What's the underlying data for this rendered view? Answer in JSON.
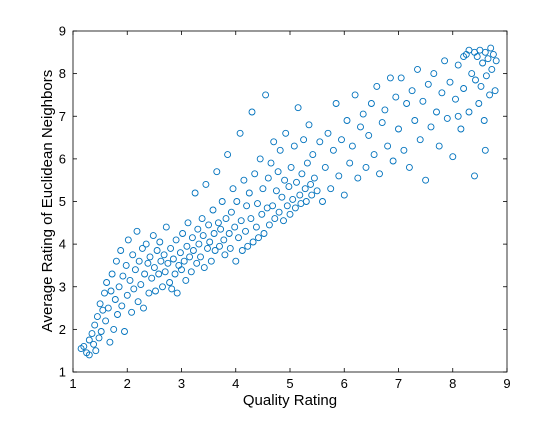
{
  "chart_data": {
    "type": "scatter",
    "xlabel": "Quality Rating",
    "ylabel": "Average Rating of Euclidean Neighbors",
    "xlim": [
      1,
      9
    ],
    "ylim": [
      1,
      9
    ],
    "x_ticks": [
      "1",
      "2",
      "3",
      "4",
      "5",
      "6",
      "7",
      "8",
      "9"
    ],
    "y_ticks": [
      "1",
      "2",
      "3",
      "4",
      "5",
      "6",
      "7",
      "8",
      "9"
    ],
    "grid": false,
    "legend": "none",
    "marker": "open-circle",
    "color": "#0072BD",
    "series": [
      {
        "points": [
          [
            1.15,
            1.55
          ],
          [
            1.2,
            1.6
          ],
          [
            1.25,
            1.45
          ],
          [
            1.3,
            1.75
          ],
          [
            1.3,
            1.4
          ],
          [
            1.35,
            1.9
          ],
          [
            1.38,
            1.65
          ],
          [
            1.4,
            2.1
          ],
          [
            1.42,
            1.5
          ],
          [
            1.45,
            2.3
          ],
          [
            1.48,
            1.8
          ],
          [
            1.5,
            2.6
          ],
          [
            1.52,
            1.95
          ],
          [
            1.55,
            2.45
          ],
          [
            1.58,
            2.85
          ],
          [
            1.6,
            2.2
          ],
          [
            1.62,
            3.1
          ],
          [
            1.65,
            2.5
          ],
          [
            1.68,
            1.7
          ],
          [
            1.7,
            2.9
          ],
          [
            1.72,
            3.3
          ],
          [
            1.75,
            2.0
          ],
          [
            1.78,
            2.7
          ],
          [
            1.8,
            3.6
          ],
          [
            1.82,
            2.35
          ],
          [
            1.85,
            3.0
          ],
          [
            1.88,
            3.85
          ],
          [
            1.9,
            2.55
          ],
          [
            1.92,
            3.25
          ],
          [
            1.95,
            1.95
          ],
          [
            1.98,
            3.5
          ],
          [
            2.0,
            2.8
          ],
          [
            2.02,
            4.1
          ],
          [
            2.05,
            3.15
          ],
          [
            2.08,
            2.4
          ],
          [
            2.1,
            3.75
          ],
          [
            2.12,
            2.95
          ],
          [
            2.15,
            3.4
          ],
          [
            2.18,
            4.3
          ],
          [
            2.2,
            2.65
          ],
          [
            2.22,
            3.6
          ],
          [
            2.25,
            3.05
          ],
          [
            2.28,
            3.9
          ],
          [
            2.3,
            2.5
          ],
          [
            2.32,
            3.3
          ],
          [
            2.35,
            4.0
          ],
          [
            2.38,
            3.55
          ],
          [
            2.4,
            2.85
          ],
          [
            2.42,
            3.7
          ],
          [
            2.45,
            3.2
          ],
          [
            2.48,
            4.2
          ],
          [
            2.5,
            3.45
          ],
          [
            2.52,
            2.9
          ],
          [
            2.55,
            3.85
          ],
          [
            2.58,
            3.3
          ],
          [
            2.6,
            4.05
          ],
          [
            2.62,
            3.6
          ],
          [
            2.65,
            3.0
          ],
          [
            2.68,
            3.75
          ],
          [
            2.7,
            3.35
          ],
          [
            2.72,
            4.4
          ],
          [
            2.75,
            3.55
          ],
          [
            2.78,
            3.1
          ],
          [
            2.8,
            3.9
          ],
          [
            2.82,
            2.95
          ],
          [
            2.85,
            3.65
          ],
          [
            2.88,
            3.3
          ],
          [
            2.9,
            4.1
          ],
          [
            2.92,
            2.85
          ],
          [
            2.95,
            3.5
          ],
          [
            2.98,
            3.8
          ],
          [
            3.0,
            3.4
          ],
          [
            3.02,
            4.25
          ],
          [
            3.05,
            3.6
          ],
          [
            3.08,
            3.15
          ],
          [
            3.1,
            3.95
          ],
          [
            3.12,
            4.5
          ],
          [
            3.15,
            3.7
          ],
          [
            3.18,
            3.35
          ],
          [
            3.2,
            4.15
          ],
          [
            3.22,
            3.85
          ],
          [
            3.25,
            5.2
          ],
          [
            3.28,
            3.55
          ],
          [
            3.3,
            4.35
          ],
          [
            3.32,
            4.0
          ],
          [
            3.35,
            3.7
          ],
          [
            3.38,
            4.6
          ],
          [
            3.4,
            4.2
          ],
          [
            3.42,
            3.45
          ],
          [
            3.45,
            5.4
          ],
          [
            3.48,
            3.9
          ],
          [
            3.5,
            4.45
          ],
          [
            3.52,
            4.05
          ],
          [
            3.55,
            3.6
          ],
          [
            3.58,
            4.8
          ],
          [
            3.6,
            4.25
          ],
          [
            3.62,
            3.85
          ],
          [
            3.65,
            5.7
          ],
          [
            3.68,
            4.5
          ],
          [
            3.7,
            3.95
          ],
          [
            3.72,
            4.35
          ],
          [
            3.75,
            5.0
          ],
          [
            3.78,
            4.1
          ],
          [
            3.8,
            3.75
          ],
          [
            3.82,
            4.6
          ],
          [
            3.85,
            6.1
          ],
          [
            3.88,
            4.25
          ],
          [
            3.9,
            3.9
          ],
          [
            3.92,
            4.75
          ],
          [
            3.95,
            5.3
          ],
          [
            3.98,
            4.4
          ],
          [
            4.0,
            3.6
          ],
          [
            4.02,
            5.0
          ],
          [
            4.05,
            4.15
          ],
          [
            4.08,
            6.6
          ],
          [
            4.1,
            4.55
          ],
          [
            4.12,
            3.85
          ],
          [
            4.15,
            5.5
          ],
          [
            4.18,
            4.3
          ],
          [
            4.2,
            4.9
          ],
          [
            4.22,
            3.95
          ],
          [
            4.25,
            5.2
          ],
          [
            4.28,
            4.6
          ],
          [
            4.3,
            7.1
          ],
          [
            4.32,
            4.05
          ],
          [
            4.35,
            5.65
          ],
          [
            4.38,
            4.4
          ],
          [
            4.4,
            4.95
          ],
          [
            4.42,
            4.15
          ],
          [
            4.45,
            6.0
          ],
          [
            4.48,
            4.7
          ],
          [
            4.5,
            5.3
          ],
          [
            4.52,
            4.25
          ],
          [
            4.55,
            7.5
          ],
          [
            4.58,
            4.85
          ],
          [
            4.6,
            5.55
          ],
          [
            4.62,
            4.45
          ],
          [
            4.65,
            5.9
          ],
          [
            4.68,
            4.9
          ],
          [
            4.7,
            6.4
          ],
          [
            4.72,
            4.6
          ],
          [
            4.75,
            5.25
          ],
          [
            4.78,
            5.7
          ],
          [
            4.8,
            4.75
          ],
          [
            4.82,
            6.2
          ],
          [
            4.85,
            5.1
          ],
          [
            4.88,
            4.55
          ],
          [
            4.9,
            5.5
          ],
          [
            4.92,
            6.6
          ],
          [
            4.95,
            4.9
          ],
          [
            4.98,
            5.35
          ],
          [
            5.0,
            4.7
          ],
          [
            5.02,
            5.8
          ],
          [
            5.05,
            5.05
          ],
          [
            5.08,
            6.3
          ],
          [
            5.1,
            4.85
          ],
          [
            5.12,
            5.45
          ],
          [
            5.15,
            7.2
          ],
          [
            5.18,
            5.15
          ],
          [
            5.2,
            4.95
          ],
          [
            5.22,
            5.65
          ],
          [
            5.25,
            6.45
          ],
          [
            5.28,
            5.3
          ],
          [
            5.3,
            5.0
          ],
          [
            5.32,
            5.9
          ],
          [
            5.35,
            6.8
          ],
          [
            5.38,
            5.4
          ],
          [
            5.4,
            5.15
          ],
          [
            5.42,
            6.1
          ],
          [
            5.45,
            5.55
          ],
          [
            5.5,
            5.25
          ],
          [
            5.55,
            6.4
          ],
          [
            5.6,
            5.0
          ],
          [
            5.65,
            5.8
          ],
          [
            5.7,
            6.6
          ],
          [
            5.75,
            5.3
          ],
          [
            5.8,
            6.2
          ],
          [
            5.85,
            7.3
          ],
          [
            5.9,
            5.6
          ],
          [
            5.95,
            6.45
          ],
          [
            6.0,
            5.15
          ],
          [
            6.05,
            6.9
          ],
          [
            6.1,
            5.9
          ],
          [
            6.15,
            6.3
          ],
          [
            6.2,
            7.5
          ],
          [
            6.25,
            5.55
          ],
          [
            6.3,
            6.75
          ],
          [
            6.35,
            7.05
          ],
          [
            6.4,
            5.8
          ],
          [
            6.45,
            6.55
          ],
          [
            6.5,
            7.3
          ],
          [
            6.55,
            6.1
          ],
          [
            6.6,
            7.7
          ],
          [
            6.65,
            5.65
          ],
          [
            6.7,
            6.85
          ],
          [
            6.75,
            7.15
          ],
          [
            6.8,
            6.3
          ],
          [
            6.85,
            7.9
          ],
          [
            6.9,
            5.95
          ],
          [
            6.95,
            7.45
          ],
          [
            7.0,
            6.7
          ],
          [
            7.05,
            7.9
          ],
          [
            7.1,
            6.2
          ],
          [
            7.15,
            7.3
          ],
          [
            7.2,
            5.8
          ],
          [
            7.25,
            7.6
          ],
          [
            7.3,
            6.9
          ],
          [
            7.35,
            8.1
          ],
          [
            7.4,
            6.45
          ],
          [
            7.45,
            7.35
          ],
          [
            7.5,
            5.5
          ],
          [
            7.55,
            7.75
          ],
          [
            7.6,
            6.75
          ],
          [
            7.65,
            8.0
          ],
          [
            7.7,
            7.1
          ],
          [
            7.75,
            6.3
          ],
          [
            7.8,
            7.55
          ],
          [
            7.85,
            8.3
          ],
          [
            7.9,
            6.95
          ],
          [
            7.95,
            7.8
          ],
          [
            8.0,
            6.05
          ],
          [
            8.05,
            7.4
          ],
          [
            8.1,
            8.2
          ],
          [
            8.15,
            6.7
          ],
          [
            8.2,
            7.65
          ],
          [
            8.25,
            8.45
          ],
          [
            8.3,
            7.1
          ],
          [
            8.35,
            8.0
          ],
          [
            8.4,
            5.6
          ],
          [
            8.42,
            7.85
          ],
          [
            8.45,
            8.4
          ],
          [
            8.48,
            7.3
          ],
          [
            8.5,
            8.55
          ],
          [
            8.52,
            7.7
          ],
          [
            8.55,
            8.25
          ],
          [
            8.58,
            6.9
          ],
          [
            8.6,
            8.5
          ],
          [
            8.62,
            7.95
          ],
          [
            8.65,
            8.35
          ],
          [
            8.68,
            7.5
          ],
          [
            8.7,
            8.6
          ],
          [
            8.72,
            8.1
          ],
          [
            8.75,
            8.45
          ],
          [
            8.78,
            7.6
          ],
          [
            8.8,
            8.3
          ],
          [
            8.6,
            6.2
          ],
          [
            8.4,
            8.5
          ],
          [
            8.3,
            8.55
          ],
          [
            8.2,
            8.4
          ],
          [
            8.1,
            7.0
          ]
        ]
      }
    ]
  }
}
